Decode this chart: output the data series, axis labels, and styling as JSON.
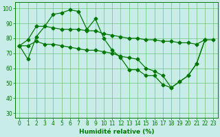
{
  "x": [
    0,
    1,
    2,
    3,
    4,
    5,
    6,
    7,
    8,
    9,
    10,
    11,
    12,
    13,
    14,
    15,
    16,
    17,
    18,
    19,
    20,
    21,
    22,
    23
  ],
  "line1": [
    75,
    66,
    81,
    88,
    96,
    97,
    99,
    98,
    86,
    93,
    80,
    72,
    67,
    59,
    59,
    55,
    55,
    49,
    47,
    51,
    55,
    63,
    79,
    null
  ],
  "line2": [
    75,
    79,
    88,
    88,
    87,
    86,
    86,
    86,
    85,
    85,
    83,
    82,
    81,
    80,
    80,
    79,
    79,
    78,
    78,
    77,
    77,
    76,
    79,
    79
  ],
  "line3": [
    75,
    75,
    78,
    76,
    76,
    75,
    74,
    73,
    72,
    72,
    71,
    70,
    68,
    67,
    66,
    60,
    58,
    55,
    47,
    51,
    55,
    63,
    79,
    null
  ],
  "color": "#007700",
  "bg_color": "#c8ece8",
  "grid_color": "#33aa33",
  "xlabel": "Humidité relative (%)",
  "ylim": [
    27,
    104
  ],
  "xlim": [
    -0.5,
    23.5
  ],
  "yticks": [
    30,
    40,
    50,
    60,
    70,
    80,
    90,
    100
  ],
  "xticks": [
    0,
    1,
    2,
    3,
    4,
    5,
    6,
    7,
    8,
    9,
    10,
    11,
    12,
    13,
    14,
    15,
    16,
    17,
    18,
    19,
    20,
    21,
    22,
    23
  ]
}
